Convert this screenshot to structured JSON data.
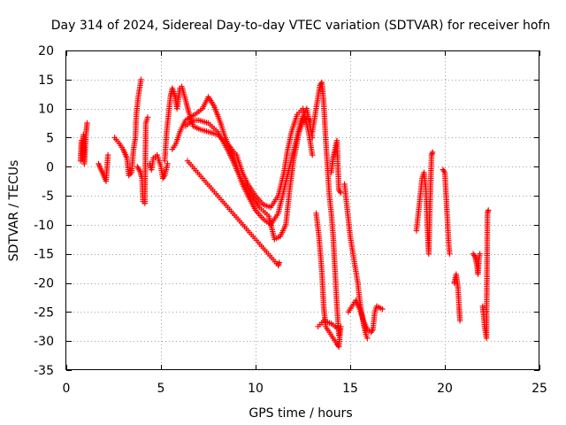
{
  "chart_data": {
    "type": "scatter",
    "title": "Day 314 of 2024, Sidereal Day-to-day VTEC variation (SDTVAR) for receiver hofn",
    "xlabel": "GPS time / hours",
    "ylabel": "SDTVAR / TECUs",
    "xlim": [
      0,
      25
    ],
    "ylim": [
      -35,
      20
    ],
    "xticks": [
      0,
      5,
      10,
      15,
      20,
      25
    ],
    "yticks": [
      -35,
      -30,
      -25,
      -20,
      -15,
      -10,
      -5,
      0,
      5,
      10,
      15,
      20
    ],
    "grid": true,
    "marker": "+",
    "color": "#ff0000",
    "series": [
      {
        "name": "SDTVAR",
        "segments": [
          [
            [
              0.75,
              1.0
            ],
            [
              0.8,
              4.5
            ],
            [
              0.85,
              2.0
            ],
            [
              0.9,
              5.5
            ],
            [
              0.95,
              0.5
            ],
            [
              1.0,
              3.0
            ],
            [
              1.05,
              6.0
            ],
            [
              1.1,
              7.5
            ]
          ],
          [
            [
              1.7,
              0.5
            ],
            [
              1.9,
              -1.0
            ],
            [
              2.1,
              -2.5
            ],
            [
              2.2,
              2.0
            ]
          ],
          [
            [
              2.55,
              5.0
            ],
            [
              2.8,
              4.0
            ],
            [
              3.0,
              3.0
            ],
            [
              3.2,
              1.5
            ],
            [
              3.3,
              -1.5
            ],
            [
              3.45,
              -1.0
            ],
            [
              3.55,
              3.0
            ],
            [
              3.65,
              5.0
            ],
            [
              3.7,
              9.0
            ],
            [
              3.8,
              12.0
            ],
            [
              3.9,
              14.0
            ],
            [
              3.95,
              15.0
            ]
          ],
          [
            [
              3.75,
              0.0
            ],
            [
              3.9,
              -0.8
            ],
            [
              4.0,
              -2.0
            ],
            [
              4.05,
              -6.0
            ],
            [
              4.15,
              -6.3
            ],
            [
              4.2,
              7.5
            ],
            [
              4.3,
              8.5
            ]
          ],
          [
            [
              4.4,
              0.5
            ],
            [
              4.5,
              -0.5
            ],
            [
              4.6,
              1.5
            ],
            [
              4.8,
              2.0
            ],
            [
              4.9,
              1.0
            ],
            [
              5.0,
              0.0
            ],
            [
              5.1,
              -2.0
            ],
            [
              5.2,
              -1.5
            ],
            [
              5.35,
              0.5
            ]
          ],
          [
            [
              5.2,
              1.0
            ],
            [
              5.3,
              6.0
            ],
            [
              5.4,
              9.0
            ],
            [
              5.5,
              12.0
            ],
            [
              5.6,
              13.5
            ],
            [
              5.75,
              12.0
            ],
            [
              5.85,
              10.0
            ],
            [
              6.0,
              13.5
            ],
            [
              6.1,
              13.8
            ],
            [
              6.3,
              11.5
            ],
            [
              6.5,
              9.0
            ],
            [
              6.7,
              7.0
            ],
            [
              7.0,
              6.5
            ],
            [
              7.5,
              6.0
            ],
            [
              8.0,
              5.5
            ],
            [
              8.5,
              4.0
            ],
            [
              9.0,
              2.0
            ],
            [
              9.3,
              -1.0
            ],
            [
              9.6,
              -3.0
            ],
            [
              10.0,
              -5.0
            ],
            [
              10.4,
              -6.5
            ],
            [
              10.8,
              -7.0
            ],
            [
              11.2,
              -5.0
            ],
            [
              11.5,
              -1.0
            ],
            [
              11.7,
              3.0
            ],
            [
              11.9,
              6.0
            ],
            [
              12.2,
              9.0
            ],
            [
              12.5,
              10.0
            ],
            [
              12.8,
              6.0
            ],
            [
              13.0,
              2.0
            ]
          ],
          [
            [
              5.6,
              3.0
            ],
            [
              5.8,
              4.0
            ],
            [
              6.0,
              6.0
            ],
            [
              6.3,
              8.0
            ],
            [
              6.8,
              9.0
            ],
            [
              7.2,
              10.0
            ],
            [
              7.5,
              12.0
            ],
            [
              7.8,
              10.5
            ],
            [
              8.1,
              8.0
            ],
            [
              8.4,
              5.0
            ],
            [
              8.7,
              2.5
            ],
            [
              9.0,
              0.0
            ],
            [
              9.3,
              -3.0
            ],
            [
              9.6,
              -5.0
            ],
            [
              10.0,
              -7.5
            ],
            [
              10.4,
              -9.0
            ],
            [
              10.8,
              -10.0
            ],
            [
              11.2,
              -8.0
            ],
            [
              11.5,
              -4.0
            ],
            [
              11.8,
              0.0
            ],
            [
              12.1,
              4.0
            ],
            [
              12.4,
              8.0
            ],
            [
              12.7,
              10.0
            ],
            [
              13.0,
              5.0
            ]
          ],
          [
            [
              6.3,
              7.0
            ],
            [
              6.7,
              8.0
            ],
            [
              7.0,
              8.0
            ],
            [
              7.5,
              7.5
            ],
            [
              8.0,
              6.0
            ],
            [
              8.5,
              3.0
            ],
            [
              8.8,
              1.0
            ],
            [
              9.2,
              -2.0
            ],
            [
              9.7,
              -4.5
            ],
            [
              10.2,
              -7.0
            ],
            [
              10.7,
              -8.5
            ],
            [
              11.0,
              -12.5
            ],
            [
              11.3,
              -12.0
            ],
            [
              11.6,
              -10.0
            ],
            [
              11.8,
              -4.0
            ],
            [
              12.0,
              1.0
            ],
            [
              12.3,
              6.0
            ],
            [
              12.6,
              8.5
            ],
            [
              12.9,
              8.0
            ]
          ],
          [
            [
              6.4,
              1.0
            ],
            [
              11.2,
              -17.0
            ],
            [
              11.25,
              -16.5
            ]
          ],
          [
            [
              13.0,
              6.0
            ],
            [
              13.2,
              10.0
            ],
            [
              13.4,
              14.0
            ],
            [
              13.5,
              14.5
            ],
            [
              13.6,
              11.0
            ],
            [
              13.7,
              5.0
            ],
            [
              13.8,
              0.0
            ],
            [
              13.9,
              -5.0
            ],
            [
              14.0,
              -8.0
            ],
            [
              14.1,
              -12.0
            ],
            [
              14.2,
              -18.0
            ],
            [
              14.3,
              -24.0
            ],
            [
              14.4,
              -29.0
            ]
          ],
          [
            [
              13.2,
              -8.0
            ],
            [
              13.35,
              -12.0
            ],
            [
              13.5,
              -18.0
            ],
            [
              13.6,
              -24.0
            ],
            [
              13.7,
              -27.5
            ],
            [
              13.9,
              -28.5
            ],
            [
              14.1,
              -29.5
            ],
            [
              14.3,
              -30.5
            ],
            [
              14.4,
              -31.0
            ],
            [
              14.5,
              -27.5
            ]
          ],
          [
            [
              13.3,
              -27.5
            ],
            [
              13.6,
              -26.5
            ],
            [
              14.0,
              -27.0
            ],
            [
              14.4,
              -28.0
            ]
          ],
          [
            [
              14.0,
              -1.0
            ],
            [
              14.1,
              1.5
            ],
            [
              14.2,
              3.0
            ],
            [
              14.3,
              4.5
            ],
            [
              14.4,
              -4.0
            ],
            [
              14.5,
              -4.5
            ]
          ],
          [
            [
              14.7,
              -3.0
            ],
            [
              14.8,
              -6.0
            ],
            [
              14.9,
              -9.0
            ],
            [
              15.0,
              -12.0
            ],
            [
              15.1,
              -14.0
            ],
            [
              15.2,
              -16.0
            ],
            [
              15.3,
              -18.0
            ],
            [
              15.4,
              -20.0
            ],
            [
              15.5,
              -23.0
            ],
            [
              15.6,
              -25.0
            ],
            [
              15.7,
              -27.0
            ],
            [
              15.8,
              -28.5
            ],
            [
              15.9,
              -29.5
            ]
          ],
          [
            [
              14.9,
              -25.0
            ],
            [
              15.1,
              -24.0
            ],
            [
              15.3,
              -23.0
            ],
            [
              15.5,
              -24.5
            ],
            [
              15.7,
              -26.5
            ],
            [
              15.9,
              -28.0
            ],
            [
              16.1,
              -28.5
            ],
            [
              16.2,
              -28.0
            ],
            [
              16.3,
              -25.0
            ],
            [
              16.4,
              -24.0
            ],
            [
              16.7,
              -24.5
            ]
          ],
          [
            [
              18.5,
              -11.0
            ],
            [
              18.6,
              -8.0
            ],
            [
              18.7,
              -5.0
            ],
            [
              18.8,
              -2.0
            ],
            [
              18.9,
              -1.0
            ],
            [
              19.0,
              -4.0
            ],
            [
              19.05,
              -8.0
            ],
            [
              19.1,
              -12.0
            ],
            [
              19.15,
              -15.0
            ],
            [
              19.2,
              -8.0
            ],
            [
              19.25,
              -3.0
            ],
            [
              19.3,
              2.0
            ],
            [
              19.35,
              2.5
            ]
          ],
          [
            [
              19.9,
              -0.5
            ],
            [
              20.0,
              -1.0
            ],
            [
              20.05,
              -4.0
            ],
            [
              20.1,
              -7.0
            ],
            [
              20.15,
              -10.0
            ],
            [
              20.2,
              -13.0
            ],
            [
              20.25,
              -15.0
            ]
          ],
          [
            [
              20.5,
              -20.0
            ],
            [
              20.6,
              -18.5
            ],
            [
              20.7,
              -21.0
            ],
            [
              20.75,
              -24.0
            ],
            [
              20.8,
              -26.5
            ]
          ],
          [
            [
              21.5,
              -15.0
            ],
            [
              21.6,
              -15.5
            ],
            [
              21.7,
              -17.0
            ],
            [
              21.75,
              -18.5
            ],
            [
              21.8,
              -16.0
            ],
            [
              21.85,
              -15.0
            ]
          ],
          [
            [
              22.0,
              -24.0
            ],
            [
              22.05,
              -25.5
            ],
            [
              22.1,
              -27.5
            ],
            [
              22.15,
              -28.5
            ],
            [
              22.2,
              -29.5
            ],
            [
              22.25,
              -8.0
            ],
            [
              22.3,
              -7.5
            ]
          ]
        ]
      }
    ]
  }
}
